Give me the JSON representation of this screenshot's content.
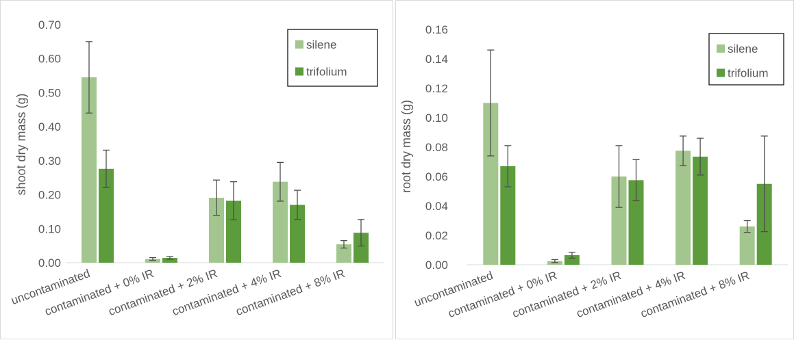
{
  "colors": {
    "silene": "#a3c68e",
    "trifolium": "#5d9c3c",
    "errorbar": "#4d4d4d",
    "axis": "#d9d9d9",
    "text": "#595959"
  },
  "chart_data": [
    {
      "type": "bar",
      "categories": [
        "uncontaminated",
        "contaminated + 0% IR",
        "contaminated + 2% IR",
        "contaminated + 4% IR",
        "contaminated + 8% IR"
      ],
      "series": [
        {
          "name": "silene",
          "values": [
            0.545,
            0.011,
            0.191,
            0.238,
            0.054
          ],
          "errors": [
            0.105,
            0.004,
            0.052,
            0.057,
            0.011
          ]
        },
        {
          "name": "trifolium",
          "values": [
            0.276,
            0.014,
            0.182,
            0.17,
            0.088
          ],
          "errors": [
            0.055,
            0.004,
            0.056,
            0.043,
            0.039
          ]
        }
      ],
      "ylabel": "shoot dry mass (g)",
      "ylim": [
        0,
        0.7
      ],
      "yticks": [
        "0.00",
        "0.10",
        "0.20",
        "0.30",
        "0.40",
        "0.50",
        "0.60",
        "0.70"
      ],
      "legend": "top-right",
      "grid": false
    },
    {
      "type": "bar",
      "categories": [
        "uncontaminated",
        "contaminated + 0% IR",
        "contaminated + 2% IR",
        "contaminated + 4% IR",
        "contaminated + 8% IR"
      ],
      "series": [
        {
          "name": "silene",
          "values": [
            0.11,
            0.0025,
            0.06,
            0.0775,
            0.026
          ],
          "errors": [
            0.036,
            0.001,
            0.021,
            0.01,
            0.004
          ]
        },
        {
          "name": "trifolium",
          "values": [
            0.067,
            0.0065,
            0.0575,
            0.0735,
            0.055
          ],
          "errors": [
            0.014,
            0.002,
            0.014,
            0.0125,
            0.0325
          ]
        }
      ],
      "ylabel": "root dry mass (g)",
      "ylim": [
        0,
        0.16
      ],
      "yticks": [
        "0.00",
        "0.02",
        "0.04",
        "0.06",
        "0.08",
        "0.10",
        "0.12",
        "0.14",
        "0.16"
      ],
      "legend": "top-right",
      "grid": false
    }
  ]
}
